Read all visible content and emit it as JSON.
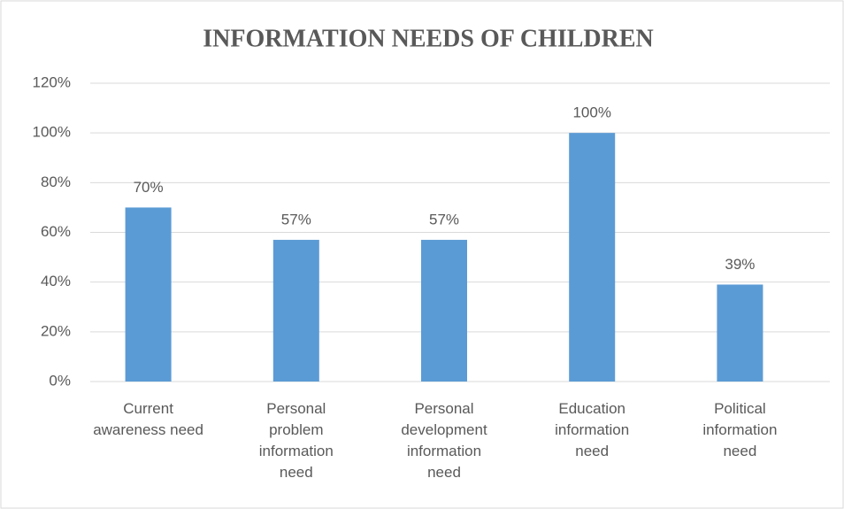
{
  "chart_data": {
    "type": "bar",
    "title": "INFORMATION NEEDS OF CHILDREN",
    "categories": [
      "Current\nawareness need",
      "Personal\nproblem\ninformation\nneed",
      "Personal\ndevelopment\ninformation\nneed",
      "Education\ninformation\nneed",
      "Political\ninformation\nneed"
    ],
    "values": [
      70,
      57,
      57,
      100,
      39
    ],
    "value_labels": [
      "70%",
      "57%",
      "57%",
      "100%",
      "39%"
    ],
    "color": "#5b9bd5",
    "ylim": [
      0,
      120
    ],
    "yticks": [
      {
        "value": 0,
        "label": "0%"
      },
      {
        "value": 20,
        "label": "20%"
      },
      {
        "value": 40,
        "label": "40%"
      },
      {
        "value": 60,
        "label": "60%"
      },
      {
        "value": 80,
        "label": "80%"
      },
      {
        "value": 100,
        "label": "100%"
      },
      {
        "value": 120,
        "label": "120%"
      }
    ],
    "grid": true
  }
}
